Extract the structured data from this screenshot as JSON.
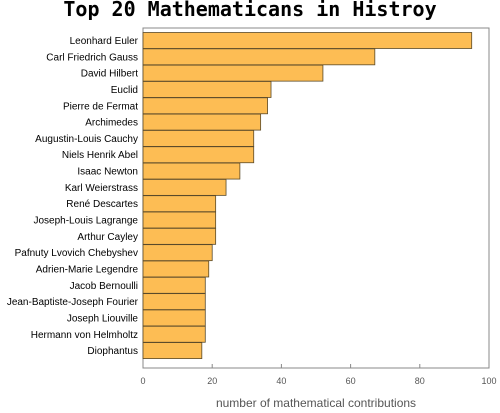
{
  "chart_data": {
    "type": "bar",
    "orientation": "horizontal",
    "title": "Top 20 Mathematicans in Histroy",
    "xlabel": "number of mathematical contributions",
    "ylabel": "",
    "xlim": [
      0,
      100
    ],
    "xticks": [
      0,
      20,
      40,
      60,
      80,
      100
    ],
    "grid": false,
    "legend": "none",
    "bar_color": "#fdbd54",
    "bar_edge_color": "#5a4a2a",
    "categories": [
      "Leonhard Euler",
      "Carl Friedrich Gauss",
      "David Hilbert",
      "Euclid",
      "Pierre de Fermat",
      "Archimedes",
      "Augustin-Louis Cauchy",
      "Niels Henrik Abel",
      "Isaac Newton",
      "Karl Weierstrass",
      "René Descartes",
      "Joseph-Louis Lagrange",
      "Arthur Cayley",
      "Pafnuty Lvovich Chebyshev",
      "Adrien-Marie Legendre",
      "Jacob Bernoulli",
      "Jean-Baptiste-Joseph Fourier",
      "Joseph Liouville",
      "Hermann von Helmholtz",
      "Diophantus"
    ],
    "values": [
      95,
      67,
      52,
      37,
      36,
      34,
      32,
      32,
      28,
      24,
      21,
      21,
      21,
      20,
      19,
      18,
      18,
      18,
      18,
      17
    ]
  }
}
